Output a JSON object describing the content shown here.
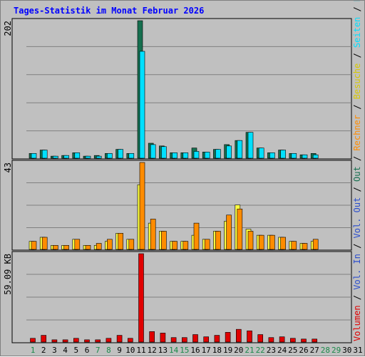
{
  "title": "Tages-Statistik im Monat Februar 2026",
  "colors": {
    "anfragen": "#166f4f",
    "dateien": "#1b9fb8",
    "seiten": "#00e0ff",
    "besuche": "#ffff40",
    "rechner": "#ff8c00",
    "volumen": "#e00000",
    "outgoing_label": "#166f4f",
    "vol_in_label": "#2a4dcc",
    "weekend_day": "#1a8a4a",
    "weekday": "#000000"
  },
  "chart_data": [
    {
      "type": "bar",
      "name": "top",
      "ymax_label": "202",
      "ylim": [
        0,
        202
      ],
      "legend_right": [
        "Anfragen",
        "Dateien",
        "Seiten"
      ],
      "categories": [
        "1",
        "2",
        "3",
        "4",
        "5",
        "6",
        "7",
        "8",
        "9",
        "10",
        "11",
        "12",
        "13",
        "14",
        "15",
        "16",
        "17",
        "18",
        "19",
        "20",
        "21",
        "22",
        "23",
        "24",
        "25",
        "26",
        "27",
        "28",
        "29",
        "30",
        "31"
      ],
      "series": [
        {
          "name": "Anfragen",
          "values": [
            7,
            12,
            3,
            4,
            8,
            3,
            4,
            7,
            13,
            7,
            202,
            22,
            18,
            8,
            8,
            15,
            9,
            13,
            20,
            26,
            38,
            15,
            8,
            12,
            7,
            5,
            7,
            0,
            0,
            0,
            0
          ]
        },
        {
          "name": "Dateien",
          "values": [
            7,
            12,
            3,
            4,
            8,
            3,
            4,
            7,
            13,
            7,
            157,
            20,
            17,
            8,
            8,
            10,
            9,
            13,
            18,
            26,
            38,
            15,
            8,
            12,
            7,
            5,
            5,
            0,
            0,
            0,
            0
          ]
        },
        {
          "name": "Seiten",
          "values": [
            7,
            12,
            3,
            4,
            8,
            3,
            3,
            7,
            13,
            7,
            157,
            20,
            17,
            8,
            8,
            10,
            9,
            13,
            18,
            26,
            38,
            15,
            8,
            12,
            7,
            5,
            5,
            0,
            0,
            0,
            0
          ]
        }
      ]
    },
    {
      "type": "bar",
      "name": "middle",
      "ymax_label": "43",
      "ylim": [
        0,
        43
      ],
      "legend_right": [
        "Besuche",
        "Rechner",
        "Outgoing"
      ],
      "categories": [
        "1",
        "2",
        "3",
        "4",
        "5",
        "6",
        "7",
        "8",
        "9",
        "10",
        "11",
        "12",
        "13",
        "14",
        "15",
        "16",
        "17",
        "18",
        "19",
        "20",
        "21",
        "22",
        "23",
        "24",
        "25",
        "26",
        "27",
        "28",
        "29",
        "30",
        "31"
      ],
      "series": [
        {
          "name": "Besuche",
          "values": [
            4,
            6,
            2,
            2,
            5,
            2,
            2,
            4,
            8,
            5,
            32,
            13,
            9,
            4,
            4,
            7,
            5,
            9,
            14,
            22,
            10,
            7,
            7,
            6,
            4,
            3,
            4,
            0,
            0,
            0,
            0
          ]
        },
        {
          "name": "Rechner",
          "values": [
            4,
            6,
            2,
            2,
            5,
            2,
            3,
            5,
            8,
            5,
            43,
            15,
            9,
            4,
            4,
            13,
            5,
            9,
            17,
            20,
            9,
            7,
            7,
            6,
            4,
            3,
            5,
            0,
            0,
            0,
            0
          ]
        }
      ]
    },
    {
      "type": "bar",
      "name": "bottom",
      "ymax_label": "59.09 KB",
      "ylim": [
        0,
        59.09
      ],
      "legend_right": [
        "Volumen",
        "Vol. In",
        "Vol. Out"
      ],
      "categories": [
        "1",
        "2",
        "3",
        "4",
        "5",
        "6",
        "7",
        "8",
        "9",
        "10",
        "11",
        "12",
        "13",
        "14",
        "15",
        "16",
        "17",
        "18",
        "19",
        "20",
        "21",
        "22",
        "23",
        "24",
        "25",
        "26",
        "27",
        "28",
        "29",
        "30",
        "31"
      ],
      "series": [
        {
          "name": "Volumen",
          "values": [
            2.5,
            4.5,
            1.5,
            1.5,
            2.5,
            1.5,
            1.5,
            2.5,
            4.5,
            2.5,
            59.09,
            7,
            6,
            3,
            3,
            5,
            3.5,
            4.5,
            6.5,
            8.5,
            7.5,
            5,
            3,
            3.5,
            2.5,
            2,
            2,
            0,
            0,
            0,
            0
          ]
        }
      ]
    }
  ],
  "legend_texts": {
    "top": [
      {
        "text": "Anfragen",
        "key": "anfragen"
      },
      {
        "text": " / ",
        "key": "sep"
      },
      {
        "text": "Dateien",
        "key": "dateien"
      },
      {
        "text": " / ",
        "key": "sep"
      },
      {
        "text": "Seiten",
        "key": "seiten"
      },
      {
        "text": " / ",
        "key": "sep"
      },
      {
        "text": "Besuche",
        "key": "besuche"
      },
      {
        "text": " / ",
        "key": "sep"
      },
      {
        "text": "Rechner",
        "key": "rechner"
      },
      {
        "text": " / ",
        "key": "sep"
      },
      {
        "text": "Out",
        "key": "outgoing_label"
      },
      {
        "text": " / ",
        "key": "sep"
      },
      {
        "text": "Vol. In",
        "key": "vol_in_label"
      },
      {
        "text": " / ",
        "key": "sep"
      },
      {
        "text": "Vol. Out",
        "key": "vol_in_label"
      },
      {
        "text": " / ",
        "key": "sep"
      },
      {
        "text": "Volumen",
        "key": "volumen"
      }
    ]
  },
  "weekend_days": [
    1,
    7,
    8,
    14,
    15,
    21,
    22,
    28,
    29
  ]
}
